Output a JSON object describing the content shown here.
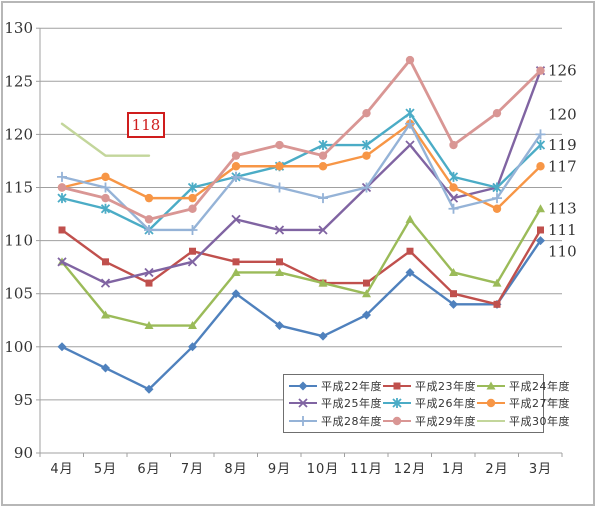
{
  "window": {
    "background": "#ffffff",
    "frame_border_color": "#b7b7b7"
  },
  "chart_data": {
    "type": "line",
    "title": "",
    "xlabel": "",
    "ylabel": "",
    "categories": [
      "4月",
      "5月",
      "6月",
      "7月",
      "8月",
      "9月",
      "10月",
      "11月",
      "12月",
      "1月",
      "2月",
      "3月"
    ],
    "y_axis": {
      "min": 90,
      "max": 130,
      "step": 5,
      "tick_labels": [
        "90",
        "95",
        "100",
        "105",
        "110",
        "115",
        "120",
        "125",
        "130"
      ]
    },
    "grid": true,
    "legend_position": "inside-bottom-right",
    "series": [
      {
        "name": "平成22年度",
        "color": "#4F81BD",
        "marker": "diamond",
        "values": [
          100,
          98,
          96,
          100,
          105,
          102,
          101,
          103,
          107,
          104,
          104,
          110
        ]
      },
      {
        "name": "平成23年度",
        "color": "#C0504D",
        "marker": "square",
        "values": [
          111,
          108,
          106,
          109,
          108,
          108,
          106,
          106,
          109,
          105,
          104,
          111
        ]
      },
      {
        "name": "平成24年度",
        "color": "#9BBB59",
        "marker": "triangle",
        "values": [
          108,
          103,
          102,
          102,
          107,
          107,
          106,
          105,
          112,
          107,
          106,
          113
        ]
      },
      {
        "name": "平成25年度",
        "color": "#8064A2",
        "marker": "x",
        "values": [
          108,
          106,
          107,
          108,
          112,
          111,
          111,
          115,
          119,
          114,
          115,
          126
        ]
      },
      {
        "name": "平成26年度",
        "color": "#4BACC6",
        "marker": "star",
        "values": [
          114,
          113,
          111,
          115,
          116,
          117,
          119,
          119,
          122,
          116,
          115,
          119
        ]
      },
      {
        "name": "平成27年度",
        "color": "#F79646",
        "marker": "circle",
        "values": [
          115,
          116,
          114,
          114,
          117,
          117,
          117,
          118,
          121,
          115,
          113,
          117
        ]
      },
      {
        "name": "平成28年度",
        "color": "#95B3D7",
        "marker": "plus",
        "values": [
          116,
          115,
          111,
          111,
          116,
          115,
          114,
          115,
          121,
          113,
          114,
          120
        ]
      },
      {
        "name": "平成29年度",
        "color": "#D99694",
        "marker": "circle",
        "values": [
          115,
          114,
          112,
          113,
          118,
          119,
          118,
          122,
          127,
          119,
          122,
          126
        ]
      },
      {
        "name": "平成30年度",
        "color": "#C3D69B",
        "marker": "none",
        "values": [
          121,
          118,
          118,
          null,
          null,
          null,
          null,
          null,
          null,
          null,
          null,
          null
        ]
      }
    ],
    "end_labels": [
      "126",
      "120",
      "119",
      "117",
      "113",
      "111",
      "110"
    ],
    "annotation": {
      "text": "118",
      "color": "#cf1d1d"
    }
  }
}
